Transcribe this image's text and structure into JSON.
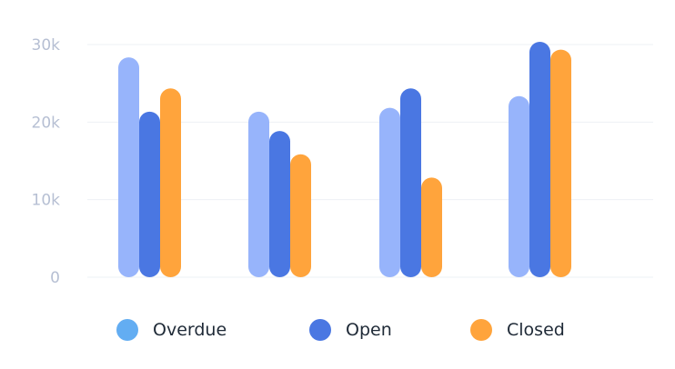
{
  "chart_data": {
    "type": "bar",
    "title": "",
    "xlabel": "",
    "ylabel": "",
    "categories": [
      "",
      "",
      "",
      ""
    ],
    "ylim": [
      0,
      30000
    ],
    "yticks": [
      {
        "value": 0,
        "label": "0"
      },
      {
        "value": 10000,
        "label": "10k"
      },
      {
        "value": 20000,
        "label": "20k"
      },
      {
        "value": 30000,
        "label": "30k"
      }
    ],
    "grid": true,
    "bar_style": "rounded",
    "legend_position": "bottom",
    "series": [
      {
        "name": "Overdue",
        "color": "#97b4fb",
        "legend_color": "#63adf2",
        "values": [
          27000,
          20000,
          20500,
          22000
        ]
      },
      {
        "name": "Open",
        "color": "#4a77e2",
        "legend_color": "#4a77e2",
        "values": [
          20000,
          17500,
          23000,
          29000
        ]
      },
      {
        "name": "Closed",
        "color": "#ffa43c",
        "legend_color": "#ffa43c",
        "values": [
          23000,
          14500,
          11500,
          28000
        ]
      }
    ]
  }
}
